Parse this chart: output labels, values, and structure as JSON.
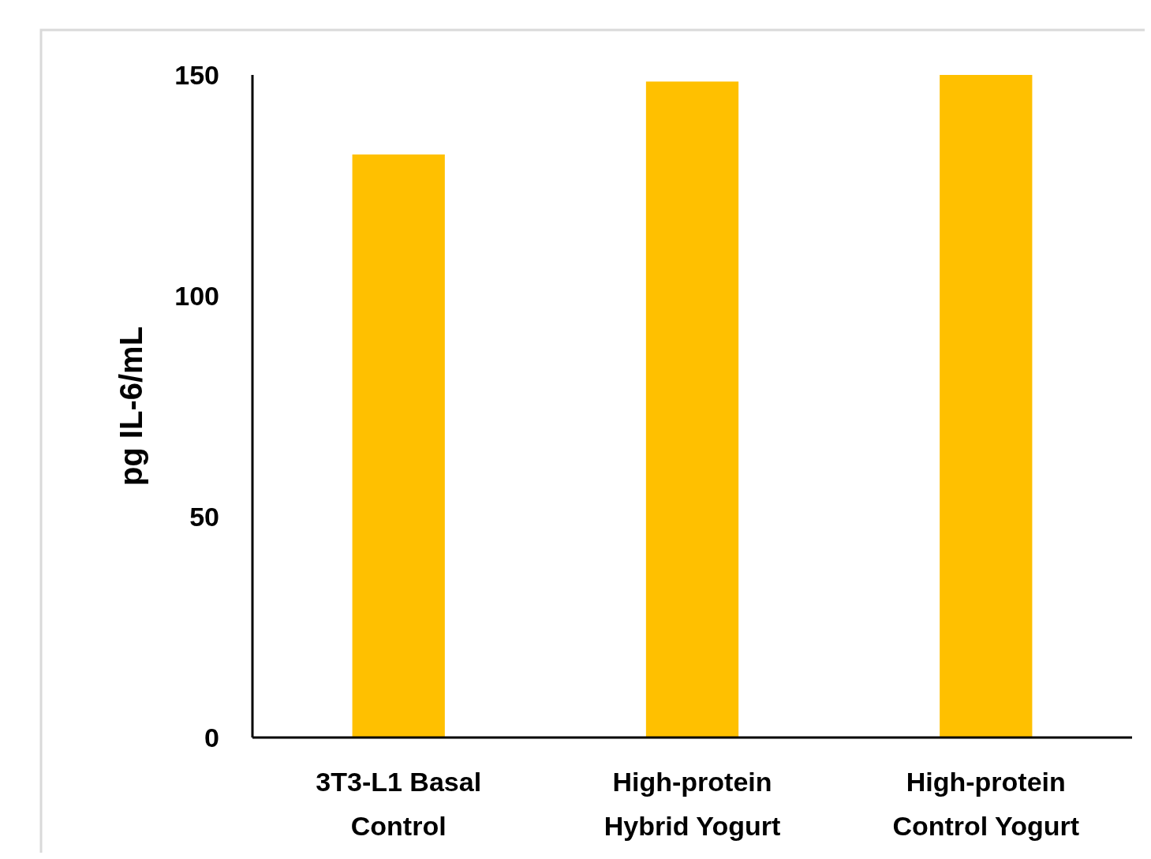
{
  "chart_data": {
    "type": "bar",
    "ylabel": "pg IL-6/mL",
    "categories": [
      "3T3-L1 Basal Control",
      "High-protein Hybrid Yogurt",
      "High-protein Control Yogurt"
    ],
    "values": [
      132,
      148.5,
      150
    ],
    "color": "#ffc000",
    "ylim": [
      0,
      150
    ],
    "yticks": [
      0,
      50,
      100,
      150
    ],
    "grid": false
  }
}
